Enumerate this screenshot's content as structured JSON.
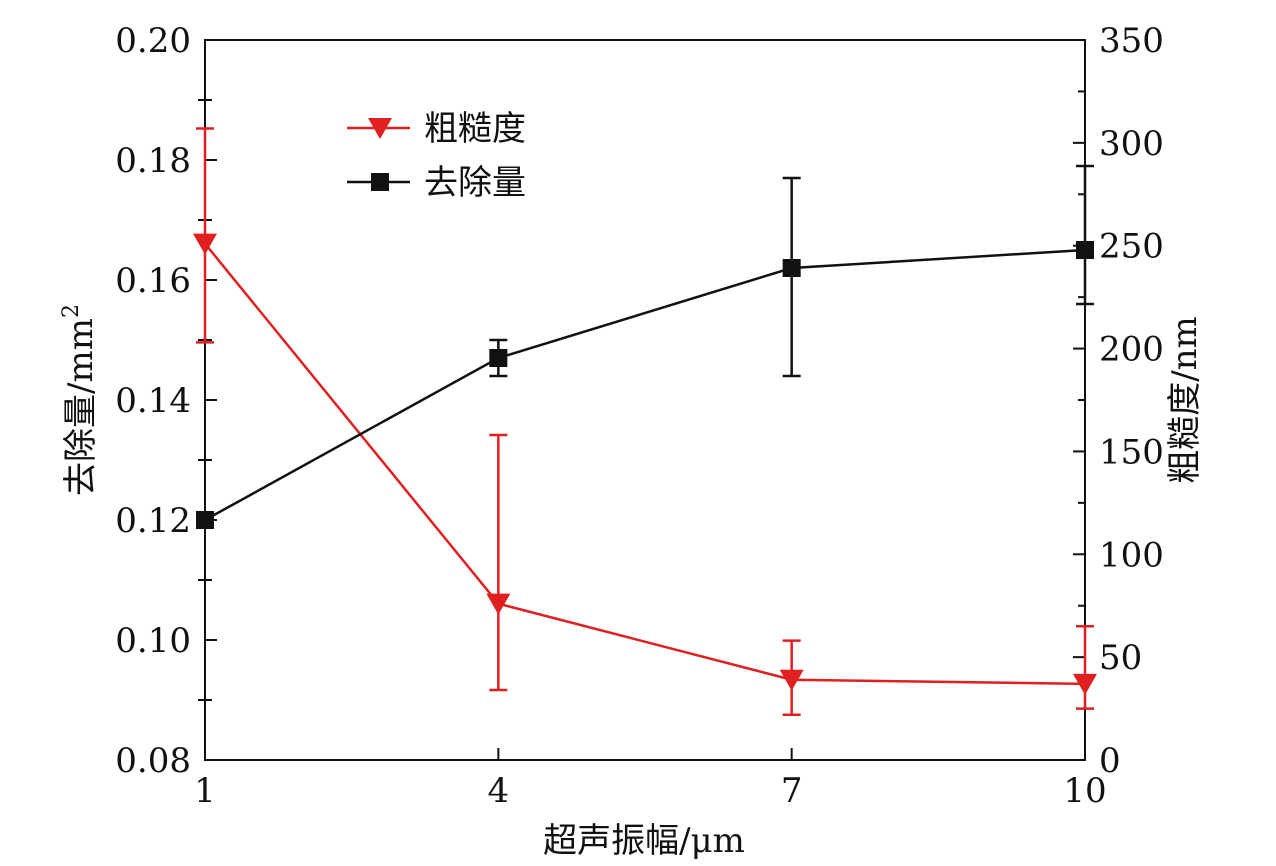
{
  "chart_data": {
    "type": "line",
    "title": "",
    "x": [
      1,
      4,
      7,
      10
    ],
    "xlabel": "超声振幅/μm",
    "xlim": [
      1,
      10
    ],
    "xticks": [
      "1",
      "4",
      "7",
      "10"
    ],
    "ylabel_left": "去除量/mm",
    "ylabel_left_sup": "2",
    "ylim_left": [
      0.08,
      0.2
    ],
    "yticks_left": [
      "0.08",
      "0.10",
      "0.12",
      "0.14",
      "0.16",
      "0.18",
      "0.20"
    ],
    "ylabel_right": "粗糙度/nm",
    "ylim_right": [
      0,
      350
    ],
    "yticks_right": [
      "0",
      "50",
      "100",
      "150",
      "200",
      "250",
      "300",
      "350"
    ],
    "grid": false,
    "legend_position": "top-left",
    "series": [
      {
        "name": "粗糙度",
        "axis": "right",
        "color": "#e02020",
        "marker": "triangle-down",
        "values": [
          251,
          76,
          39,
          37
        ],
        "err_low": [
          203,
          34,
          22,
          25
        ],
        "err_high": [
          307,
          158,
          58,
          65
        ]
      },
      {
        "name": "去除量",
        "axis": "left",
        "color": "#111111",
        "marker": "square",
        "values": [
          0.12,
          0.147,
          0.162,
          0.165
        ],
        "err_low": [
          0.12,
          0.144,
          0.144,
          0.156
        ],
        "err_high": [
          0.12,
          0.15,
          0.177,
          0.179
        ]
      }
    ]
  }
}
